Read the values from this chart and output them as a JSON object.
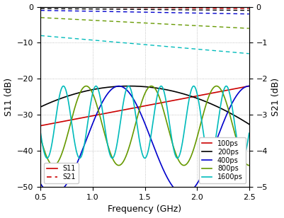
{
  "freq_start": 0.5,
  "freq_end": 2.5,
  "freq_points": 2000,
  "delays_ps": [
    100,
    200,
    400,
    800,
    1600
  ],
  "colors": [
    "#cc0000",
    "#000000",
    "#0000cc",
    "#669900",
    "#00bbbb"
  ],
  "xlim": [
    0.5,
    2.5
  ],
  "ylim_left": [
    -50,
    0
  ],
  "ylim_right": [
    -5,
    0
  ],
  "xlabel": "Frequency (GHz)",
  "ylabel_left": "S11 (dB)",
  "ylabel_right": "S21 (dB)",
  "xticks": [
    0.5,
    1.0,
    1.5,
    2.0,
    2.5
  ],
  "yticks_left": [
    -50,
    -40,
    -30,
    -20,
    -10,
    0
  ],
  "yticks_right": [
    -5,
    -4,
    -3,
    -2,
    -1,
    0
  ],
  "legend_labels": [
    "100ps",
    "200ps",
    "400ps",
    "800ps",
    "1600ps"
  ],
  "s11_legend_label": "S11",
  "s21_legend_label": "S21",
  "s21_start_db": [
    0.0,
    -0.05,
    -0.1,
    -0.3,
    -0.8
  ],
  "s21_end_db": [
    -0.05,
    -0.1,
    -0.2,
    -0.6,
    -1.3
  ],
  "figsize": [
    4.02,
    3.08
  ],
  "dpi": 100
}
